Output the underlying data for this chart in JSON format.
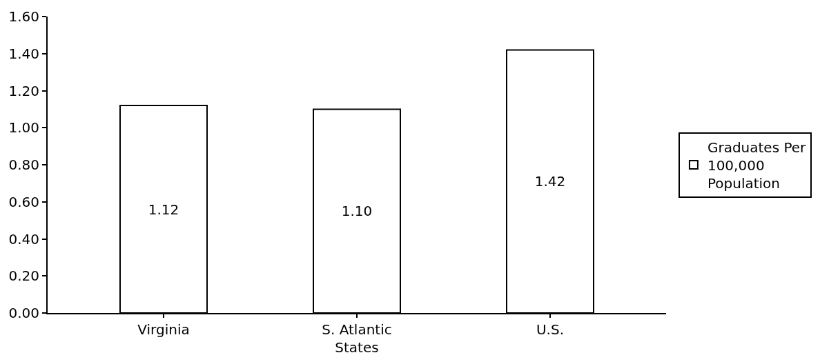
{
  "chart_data": {
    "type": "bar",
    "categories": [
      "Virginia",
      "S. Atlantic States",
      "U.S."
    ],
    "series": [
      {
        "name": "Graduates Per 100,000 Population",
        "color": "#ffffff",
        "values": [
          1.12,
          1.1,
          1.42
        ],
        "value_labels": [
          "1.12",
          "1.10",
          "1.42"
        ]
      }
    ],
    "ylim": [
      0,
      1.6
    ],
    "yticks": [
      {
        "value": 0,
        "label": "0.00"
      },
      {
        "value": 0.2,
        "label": "0.20"
      },
      {
        "value": 0.4,
        "label": "0.40"
      },
      {
        "value": 0.6,
        "label": "0.60"
      },
      {
        "value": 0.8,
        "label": "0.80"
      },
      {
        "value": 1.0,
        "label": "1.00"
      },
      {
        "value": 1.2,
        "label": "1.20"
      },
      {
        "value": 1.4,
        "label": "1.40"
      },
      {
        "value": 1.6,
        "label": "1.60"
      }
    ],
    "grid": false,
    "legend": "right"
  }
}
